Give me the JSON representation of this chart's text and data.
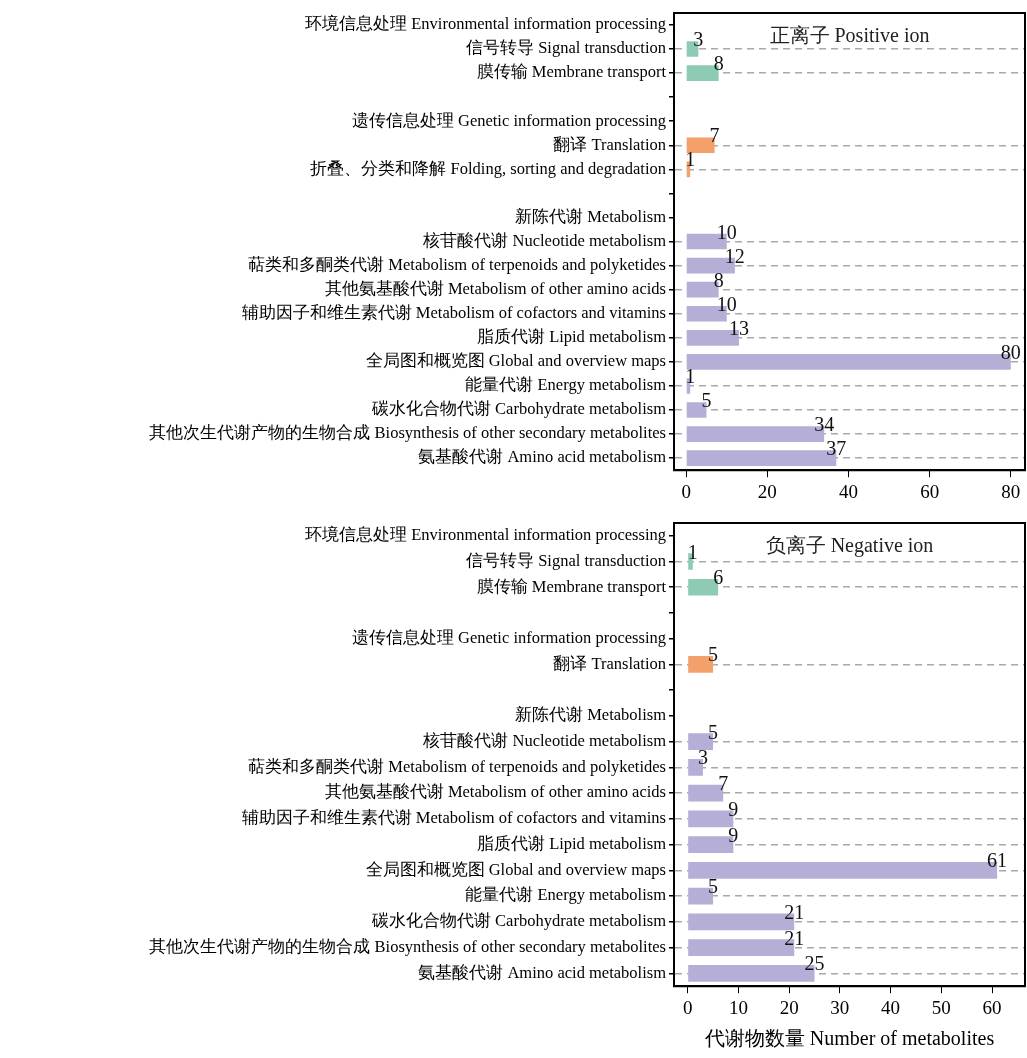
{
  "chart_data": [
    {
      "type": "bar",
      "orientation": "horizontal",
      "title": "正离子 Positive ion",
      "categories": [
        "环境信息处理 Environmental information processing",
        "信号转导 Signal transduction",
        "膜传输 Membrane transport",
        null,
        "遗传信息处理 Genetic information processing",
        "翻译 Translation",
        "折叠、分类和降解 Folding, sorting and degradation",
        null,
        "新陈代谢 Metabolism",
        "核苷酸代谢 Nucleotide metabolism",
        "萜类和多酮类代谢 Metabolism of terpenoids and polyketides",
        "其他氨基酸代谢 Metabolism of other amino acids",
        "辅助因子和维生素代谢 Metabolism of cofactors and vitamins",
        "脂质代谢 Lipid metabolism",
        "全局图和概览图 Global and overview maps",
        "能量代谢 Energy metabolism",
        "碳水化合物代谢 Carbohydrate metabolism",
        "其他次生代谢产物的生物合成 Biosynthesis of other secondary metabolites",
        "氨基酸代谢 Amino acid metabolism"
      ],
      "values": [
        null,
        3,
        8,
        null,
        null,
        7,
        1,
        null,
        null,
        10,
        12,
        8,
        10,
        13,
        80,
        1,
        5,
        34,
        37
      ],
      "colors": [
        "#8ecbb4",
        "#8ecbb4",
        "#8ecbb4",
        "#8ecbb4",
        "#f4a06a",
        "#f4a06a",
        "#f4a06a",
        "#b5aed6",
        "#b5aed6",
        "#b5aed6",
        "#b5aed6",
        "#b5aed6",
        "#b5aed6",
        "#b5aed6",
        "#b5aed6",
        "#b5aed6",
        "#b5aed6",
        "#b5aed6",
        "#b5aed6"
      ],
      "xlim": [
        -3,
        83.5
      ],
      "xticks": [
        0,
        20,
        40,
        60,
        80
      ],
      "grid": "y",
      "data_labels": true
    },
    {
      "type": "bar",
      "orientation": "horizontal",
      "title": "负离子 Negative ion",
      "xlabel": "代谢物数量 Number of metabolites",
      "categories": [
        "环境信息处理 Environmental information processing",
        "信号转导 Signal transduction",
        "膜传输 Membrane transport",
        null,
        "遗传信息处理 Genetic information processing",
        "翻译 Translation",
        null,
        "新陈代谢 Metabolism",
        "核苷酸代谢 Nucleotide metabolism",
        "萜类和多酮类代谢 Metabolism of terpenoids and polyketides",
        "其他氨基酸代谢 Metabolism of other amino acids",
        "辅助因子和维生素代谢 Metabolism of cofactors and vitamins",
        "脂质代谢 Lipid metabolism",
        "全局图和概览图 Global and overview maps",
        "能量代谢 Energy metabolism",
        "碳水化合物代谢 Carbohydrate metabolism",
        "其他次生代谢产物的生物合成 Biosynthesis of other secondary metabolites",
        "氨基酸代谢 Amino acid metabolism"
      ],
      "values": [
        null,
        1,
        6,
        null,
        null,
        5,
        null,
        null,
        5,
        3,
        7,
        9,
        9,
        61,
        5,
        21,
        21,
        25
      ],
      "colors": [
        "#8ecbb4",
        "#8ecbb4",
        "#8ecbb4",
        "#8ecbb4",
        "#f4a06a",
        "#f4a06a",
        "#f4a06a",
        "#b5aed6",
        "#b5aed6",
        "#b5aed6",
        "#b5aed6",
        "#b5aed6",
        "#b5aed6",
        "#b5aed6",
        "#b5aed6",
        "#b5aed6",
        "#b5aed6",
        "#b5aed6"
      ],
      "xlim": [
        -2.7,
        66.5
      ],
      "xticks": [
        0,
        10,
        20,
        30,
        40,
        50,
        60
      ],
      "grid": "y",
      "data_labels": true
    }
  ]
}
